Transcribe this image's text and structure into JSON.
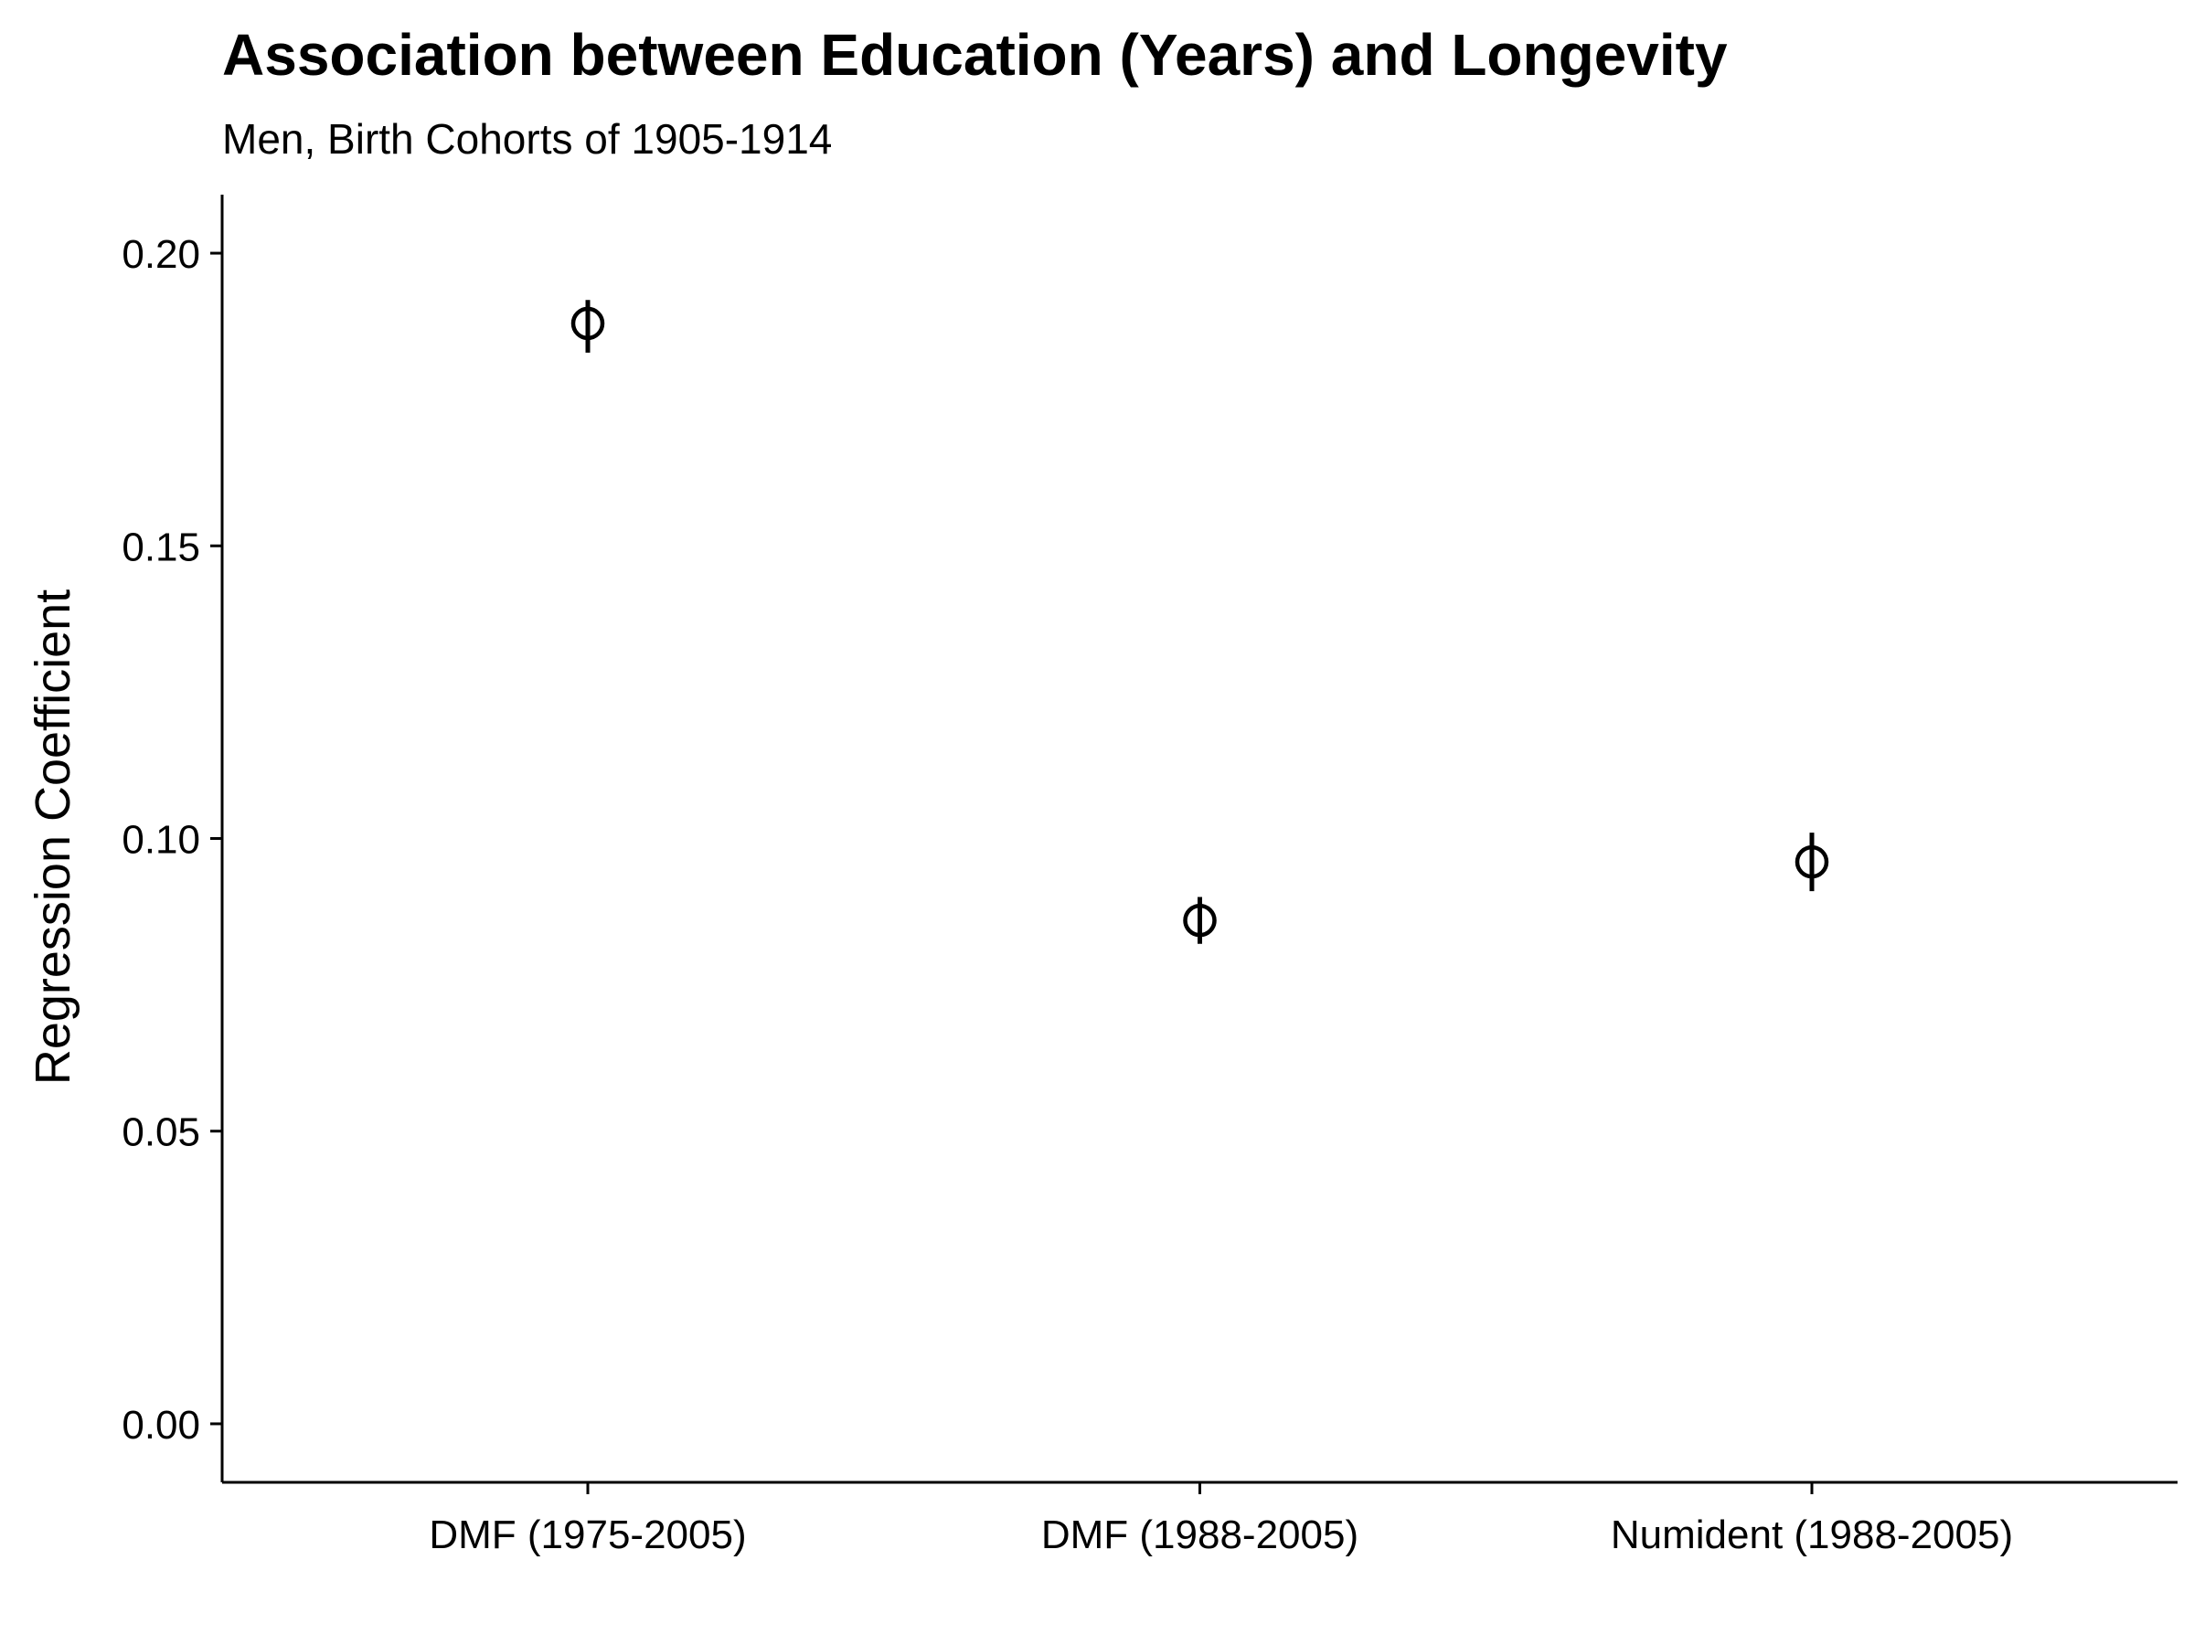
{
  "chart_data": {
    "type": "scatter",
    "title": "Association between Education (Years) and Longevity",
    "subtitle": "Men, Birth Cohorts of 1905-1914",
    "xlabel": "",
    "ylabel": "Regression Coefficient",
    "categories": [
      "DMF (1975-2005)",
      "DMF (1988-2005)",
      "Numident (1988-2005)"
    ],
    "values": [
      0.188,
      0.086,
      0.096
    ],
    "error_low": [
      0.183,
      0.082,
      0.091
    ],
    "error_high": [
      0.192,
      0.09,
      0.101
    ],
    "ylim": [
      -0.01,
      0.21
    ],
    "yticks": [
      0.0,
      0.05,
      0.1,
      0.15,
      0.2
    ],
    "ytick_labels": [
      "0.00",
      "0.05",
      "0.10",
      "0.15",
      "0.20"
    ],
    "marker": "open-circle-with-error-bar",
    "grid": false,
    "legend": "none",
    "colors": {
      "points": "#000000",
      "axes": "#000000",
      "background": "#ffffff"
    }
  }
}
